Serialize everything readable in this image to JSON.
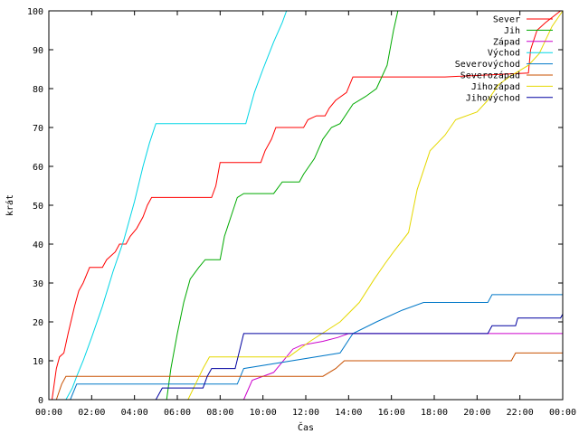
{
  "chart_data": {
    "type": "line",
    "title": "",
    "xlabel": "Čas",
    "ylabel": "krát",
    "xlim": [
      0,
      24
    ],
    "ylim": [
      0,
      100
    ],
    "x_ticks": [
      {
        "value": 0,
        "label": "00:00"
      },
      {
        "value": 2,
        "label": "02:00"
      },
      {
        "value": 4,
        "label": "04:00"
      },
      {
        "value": 6,
        "label": "06:00"
      },
      {
        "value": 8,
        "label": "08:00"
      },
      {
        "value": 10,
        "label": "10:00"
      },
      {
        "value": 12,
        "label": "12:00"
      },
      {
        "value": 14,
        "label": "14:00"
      },
      {
        "value": 16,
        "label": "16:00"
      },
      {
        "value": 18,
        "label": "18:00"
      },
      {
        "value": 20,
        "label": "20:00"
      },
      {
        "value": 22,
        "label": "22:00"
      },
      {
        "value": 24,
        "label": "00:00"
      }
    ],
    "y_ticks": [
      0,
      10,
      20,
      30,
      40,
      50,
      60,
      70,
      80,
      90,
      100
    ],
    "grid": false,
    "legend_position": "top-right",
    "series": [
      {
        "name": "Sever",
        "color": "#ff0000",
        "points": [
          [
            0.15,
            0
          ],
          [
            0.35,
            8
          ],
          [
            0.5,
            11
          ],
          [
            0.7,
            12
          ],
          [
            0.9,
            17
          ],
          [
            1.2,
            24
          ],
          [
            1.4,
            28
          ],
          [
            1.6,
            30
          ],
          [
            1.9,
            34
          ],
          [
            2.5,
            34
          ],
          [
            2.7,
            36
          ],
          [
            3.1,
            38
          ],
          [
            3.3,
            40
          ],
          [
            3.6,
            40
          ],
          [
            3.8,
            42
          ],
          [
            4.1,
            44
          ],
          [
            4.4,
            47
          ],
          [
            4.6,
            50
          ],
          [
            4.8,
            52
          ],
          [
            7.6,
            52
          ],
          [
            7.8,
            55
          ],
          [
            8,
            61
          ],
          [
            9.9,
            61
          ],
          [
            10.1,
            64
          ],
          [
            10.4,
            67
          ],
          [
            10.6,
            70
          ],
          [
            11.9,
            70
          ],
          [
            12.1,
            72
          ],
          [
            12.5,
            73
          ],
          [
            12.9,
            73
          ],
          [
            13.1,
            75
          ],
          [
            13.4,
            77
          ],
          [
            13.9,
            79
          ],
          [
            14.2,
            83
          ],
          [
            18.5,
            83
          ],
          [
            22.4,
            84
          ],
          [
            22.5,
            90
          ],
          [
            22.8,
            95
          ],
          [
            23.2,
            97
          ],
          [
            23.9,
            100
          ]
        ]
      },
      {
        "name": "Jih",
        "color": "#00aa00",
        "points": [
          [
            5.5,
            0
          ],
          [
            5.7,
            8
          ],
          [
            6,
            17
          ],
          [
            6.3,
            25
          ],
          [
            6.6,
            31
          ],
          [
            7,
            34
          ],
          [
            7.3,
            36
          ],
          [
            8,
            36
          ],
          [
            8.2,
            42
          ],
          [
            8.5,
            47
          ],
          [
            8.8,
            52
          ],
          [
            9.1,
            53
          ],
          [
            10.5,
            53
          ],
          [
            10.9,
            56
          ],
          [
            11.7,
            56
          ],
          [
            11.9,
            58
          ],
          [
            12.4,
            62
          ],
          [
            12.8,
            67
          ],
          [
            13.2,
            70
          ],
          [
            13.6,
            71
          ],
          [
            14.2,
            76
          ],
          [
            14.8,
            78
          ],
          [
            15.3,
            80
          ],
          [
            15.8,
            86
          ],
          [
            16.1,
            95
          ],
          [
            16.3,
            100
          ]
        ]
      },
      {
        "name": "Západ",
        "color": "#cc00cc",
        "points": [
          [
            9.1,
            0
          ],
          [
            9.5,
            5
          ],
          [
            10.5,
            7
          ],
          [
            11.1,
            11
          ],
          [
            11.4,
            13
          ],
          [
            11.8,
            14
          ],
          [
            12.8,
            15
          ],
          [
            13.5,
            16
          ],
          [
            14,
            17
          ],
          [
            24,
            17
          ]
        ]
      },
      {
        "name": "Východ",
        "color": "#00d5e5",
        "points": [
          [
            0.8,
            0
          ],
          [
            1.1,
            3
          ],
          [
            1.3,
            6
          ],
          [
            1.6,
            10
          ],
          [
            2,
            16
          ],
          [
            2.5,
            24
          ],
          [
            3,
            33
          ],
          [
            3.5,
            41
          ],
          [
            4,
            51
          ],
          [
            4.4,
            60
          ],
          [
            4.7,
            66
          ],
          [
            5,
            71
          ],
          [
            9.2,
            71
          ],
          [
            9.6,
            79
          ],
          [
            10,
            85
          ],
          [
            10.5,
            92
          ],
          [
            10.9,
            97
          ],
          [
            11.1,
            100
          ]
        ]
      },
      {
        "name": "Severovýchod",
        "color": "#0078c8",
        "points": [
          [
            1,
            0
          ],
          [
            1.3,
            4
          ],
          [
            8.8,
            4
          ],
          [
            9.1,
            8
          ],
          [
            13.6,
            12
          ],
          [
            14.2,
            17
          ],
          [
            15.3,
            20
          ],
          [
            16.5,
            23
          ],
          [
            17.5,
            25
          ],
          [
            20.5,
            25
          ],
          [
            20.7,
            27
          ],
          [
            24,
            27
          ]
        ]
      },
      {
        "name": "Severozápad",
        "color": "#c85000",
        "points": [
          [
            0.35,
            0
          ],
          [
            0.6,
            4
          ],
          [
            0.8,
            6
          ],
          [
            12.8,
            6
          ],
          [
            13.4,
            8
          ],
          [
            13.8,
            10
          ],
          [
            21.6,
            10
          ],
          [
            21.8,
            12
          ],
          [
            24,
            12
          ]
        ]
      },
      {
        "name": "Jihozápad",
        "color": "#e5d800",
        "points": [
          [
            6.5,
            0
          ],
          [
            7.2,
            8
          ],
          [
            7.5,
            11
          ],
          [
            11.2,
            11
          ],
          [
            12.2,
            15
          ],
          [
            13.6,
            20
          ],
          [
            14.5,
            25
          ],
          [
            15.2,
            31
          ],
          [
            15.7,
            35
          ],
          [
            16.1,
            38
          ],
          [
            16.8,
            43
          ],
          [
            17.2,
            54
          ],
          [
            17.8,
            64
          ],
          [
            18.5,
            68
          ],
          [
            19,
            72
          ],
          [
            20,
            74
          ],
          [
            20.5,
            77
          ],
          [
            21,
            81
          ],
          [
            21.5,
            83
          ],
          [
            22.4,
            86
          ],
          [
            22.9,
            89
          ],
          [
            23.5,
            96
          ],
          [
            24,
            100
          ]
        ]
      },
      {
        "name": "Jihovýchod",
        "color": "#0000a0",
        "points": [
          [
            5,
            0
          ],
          [
            5.3,
            3
          ],
          [
            7.2,
            3
          ],
          [
            7.4,
            6
          ],
          [
            7.6,
            8
          ],
          [
            8.7,
            8
          ],
          [
            9.1,
            17
          ],
          [
            13.5,
            17
          ],
          [
            20.5,
            17
          ],
          [
            20.7,
            19
          ],
          [
            21.8,
            19
          ],
          [
            21.9,
            21
          ],
          [
            23.9,
            21
          ],
          [
            24,
            22
          ]
        ]
      }
    ]
  }
}
